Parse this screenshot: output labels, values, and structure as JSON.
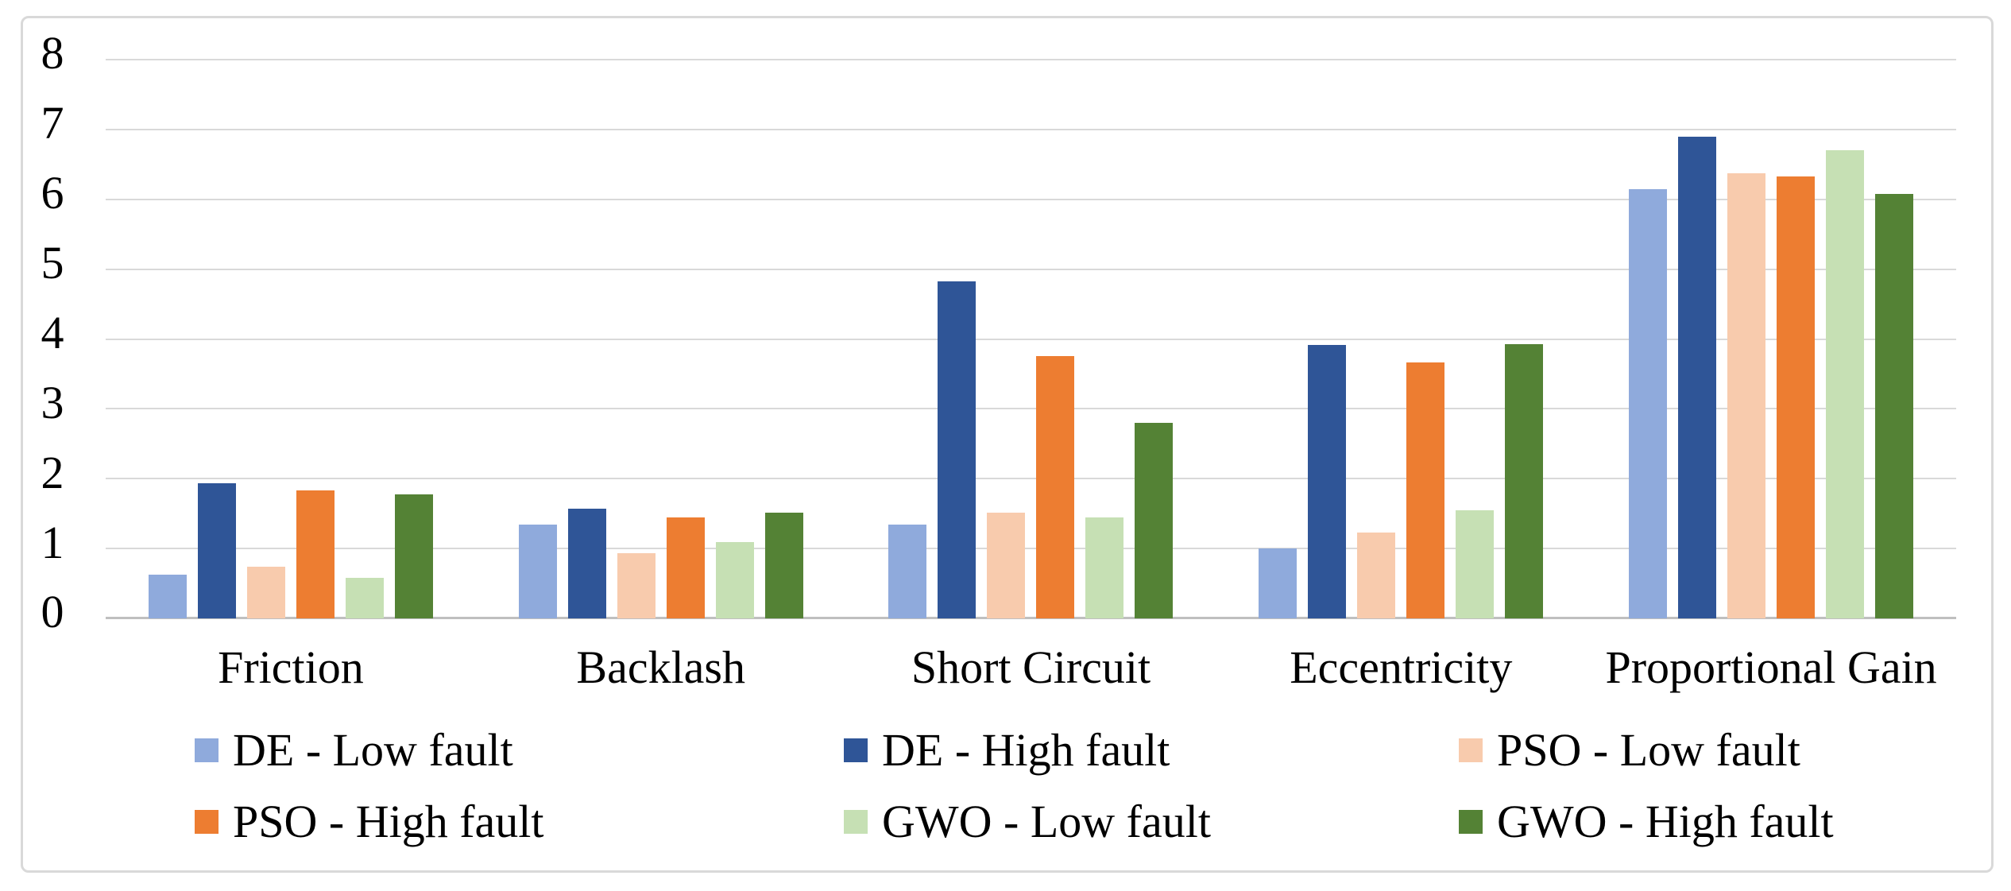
{
  "chart_data": {
    "type": "bar",
    "title": "",
    "xlabel": "",
    "ylabel": "",
    "categories": [
      "Friction",
      "Backlash",
      "Short Circuit",
      "Eccentricity",
      "Proportional Gain"
    ],
    "series": [
      {
        "name": "DE - Low fault",
        "color": "#8FAADC",
        "values": [
          0.63,
          1.34,
          1.34,
          1.0,
          6.15
        ]
      },
      {
        "name": "DE - High fault",
        "color": "#2F5597",
        "values": [
          1.93,
          1.57,
          4.82,
          3.92,
          6.9
        ]
      },
      {
        "name": "PSO - Low fault",
        "color": "#F8CBAD",
        "values": [
          0.74,
          0.93,
          1.51,
          1.23,
          6.37
        ]
      },
      {
        "name": "PSO - High fault",
        "color": "#ED7D31",
        "values": [
          1.83,
          1.44,
          3.76,
          3.66,
          6.33
        ]
      },
      {
        "name": "GWO - Low fault",
        "color": "#C6E0B4",
        "values": [
          0.58,
          1.09,
          1.44,
          1.55,
          6.7
        ]
      },
      {
        "name": "GWO - High fault",
        "color": "#548235",
        "values": [
          1.77,
          1.51,
          2.8,
          3.93,
          6.08
        ]
      }
    ],
    "ylim": [
      0,
      8
    ],
    "yticks": [
      0,
      1,
      2,
      3,
      4,
      5,
      6,
      7,
      8
    ],
    "grid": "horizontal",
    "legend_position": "bottom",
    "legend_columns": 3
  },
  "colors": {
    "gridline": "#d9d9d9",
    "axis_line": "#bfbfbf",
    "frame_border": "#d9d9d9",
    "background": "#ffffff",
    "text": "#000000"
  }
}
